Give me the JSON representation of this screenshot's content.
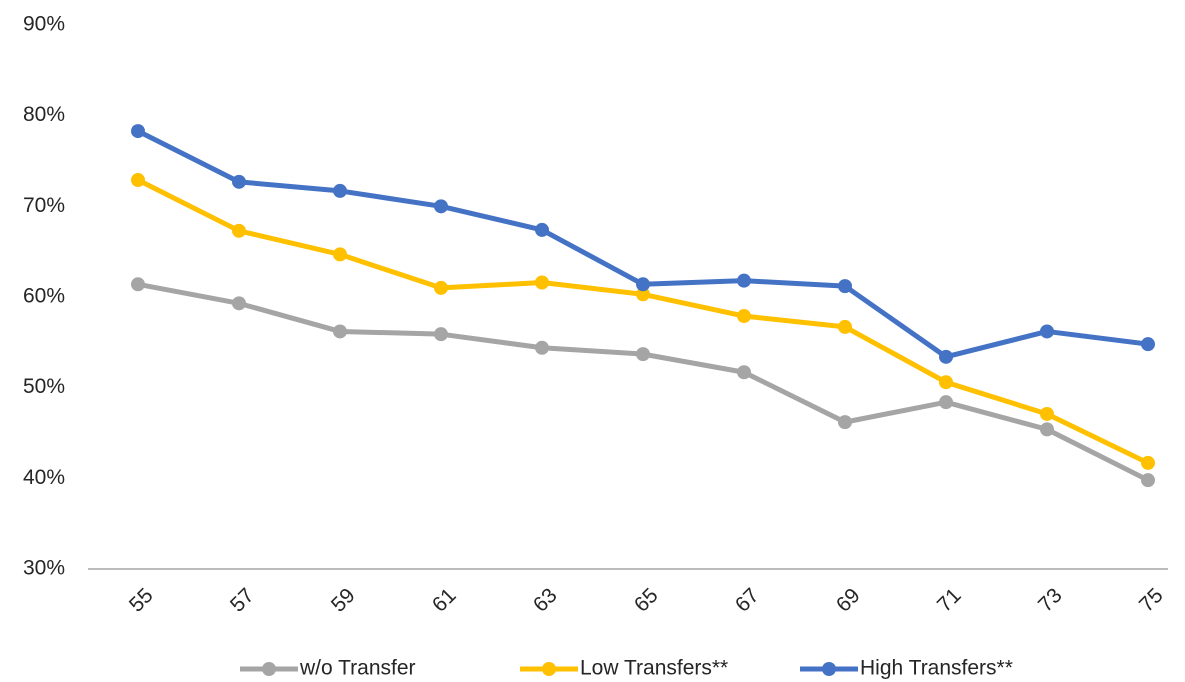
{
  "chart_data": {
    "type": "line",
    "categories": [
      "55",
      "57",
      "59",
      "61",
      "63",
      "65",
      "67",
      "69",
      "71",
      "73",
      "75"
    ],
    "series": [
      {
        "name": "w/o Transfer",
        "color": "#a5a5a5",
        "values": [
          61.4,
          59.3,
          56.2,
          55.9,
          54.4,
          53.7,
          51.7,
          46.2,
          48.4,
          45.4,
          39.8
        ]
      },
      {
        "name": "Low Transfers**",
        "color": "#ffc000",
        "values": [
          72.9,
          67.3,
          64.7,
          61.0,
          61.6,
          60.3,
          57.9,
          56.7,
          50.6,
          47.1,
          41.7
        ]
      },
      {
        "name": "High Transfers**",
        "color": "#4472c4",
        "values": [
          78.3,
          72.7,
          71.7,
          70.0,
          67.4,
          61.4,
          61.8,
          61.2,
          53.4,
          56.2,
          54.8
        ]
      }
    ],
    "ylim": [
      30,
      90
    ],
    "yticks": [
      {
        "value": 30,
        "label": "30%"
      },
      {
        "value": 40,
        "label": "40%"
      },
      {
        "value": 50,
        "label": "50%"
      },
      {
        "value": 60,
        "label": "60%"
      },
      {
        "value": 70,
        "label": "70%"
      },
      {
        "value": 80,
        "label": "80%"
      },
      {
        "value": 90,
        "label": "90%"
      }
    ],
    "grid": false,
    "legend": "bottom"
  }
}
